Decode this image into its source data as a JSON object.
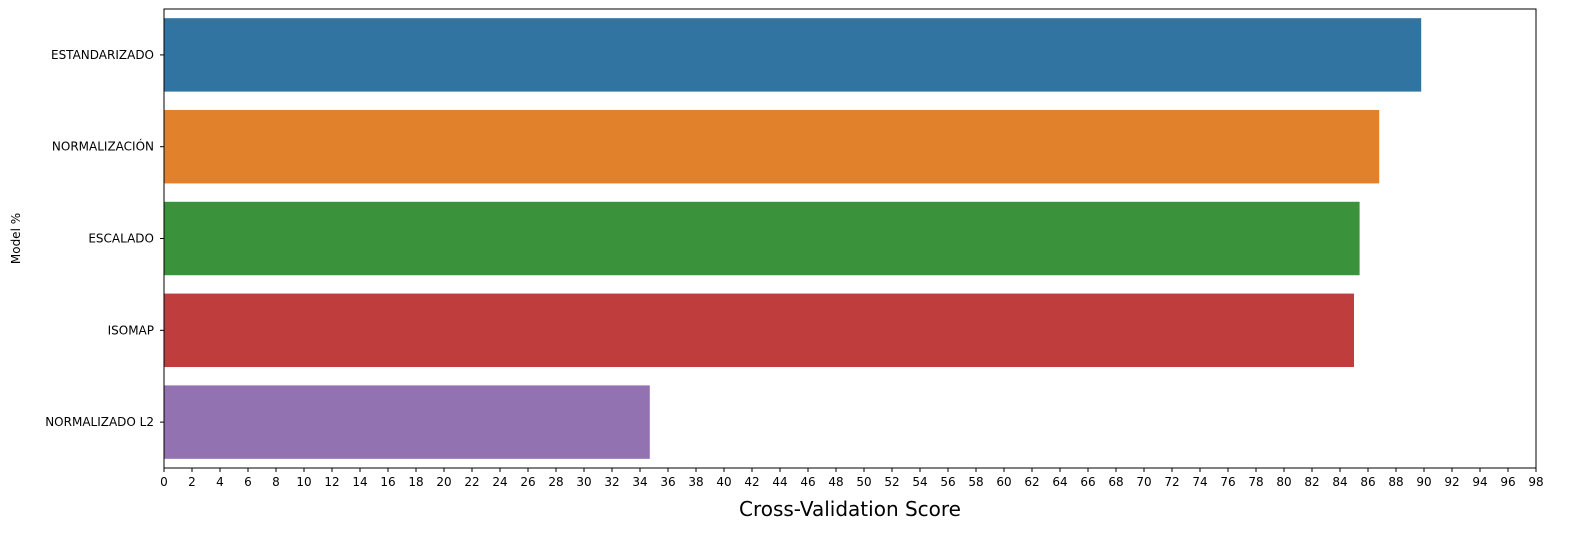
{
  "chart_data": {
    "type": "bar",
    "orientation": "horizontal",
    "categories": [
      "ESTANDARIZADO",
      "NORMALIZACIÓN",
      "ESCALADO",
      "ISOMAP",
      "NORMALIZADO L2"
    ],
    "values": [
      89.8,
      86.8,
      85.4,
      85.0,
      34.7
    ],
    "colors": [
      "#3274a1",
      "#e1812c",
      "#3a923a",
      "#c03d3e",
      "#9372b2"
    ],
    "xlabel": "Cross-Validation Score",
    "ylabel": "Model %",
    "xlim": [
      0,
      98
    ],
    "xticks": [
      0,
      2,
      4,
      6,
      8,
      10,
      12,
      14,
      16,
      18,
      20,
      22,
      24,
      26,
      28,
      30,
      32,
      34,
      36,
      38,
      40,
      42,
      44,
      46,
      48,
      50,
      52,
      54,
      56,
      58,
      60,
      62,
      64,
      66,
      68,
      70,
      72,
      74,
      76,
      78,
      80,
      82,
      84,
      86,
      88,
      90,
      92,
      94,
      96,
      98
    ],
    "grid": false,
    "legend": "none"
  }
}
